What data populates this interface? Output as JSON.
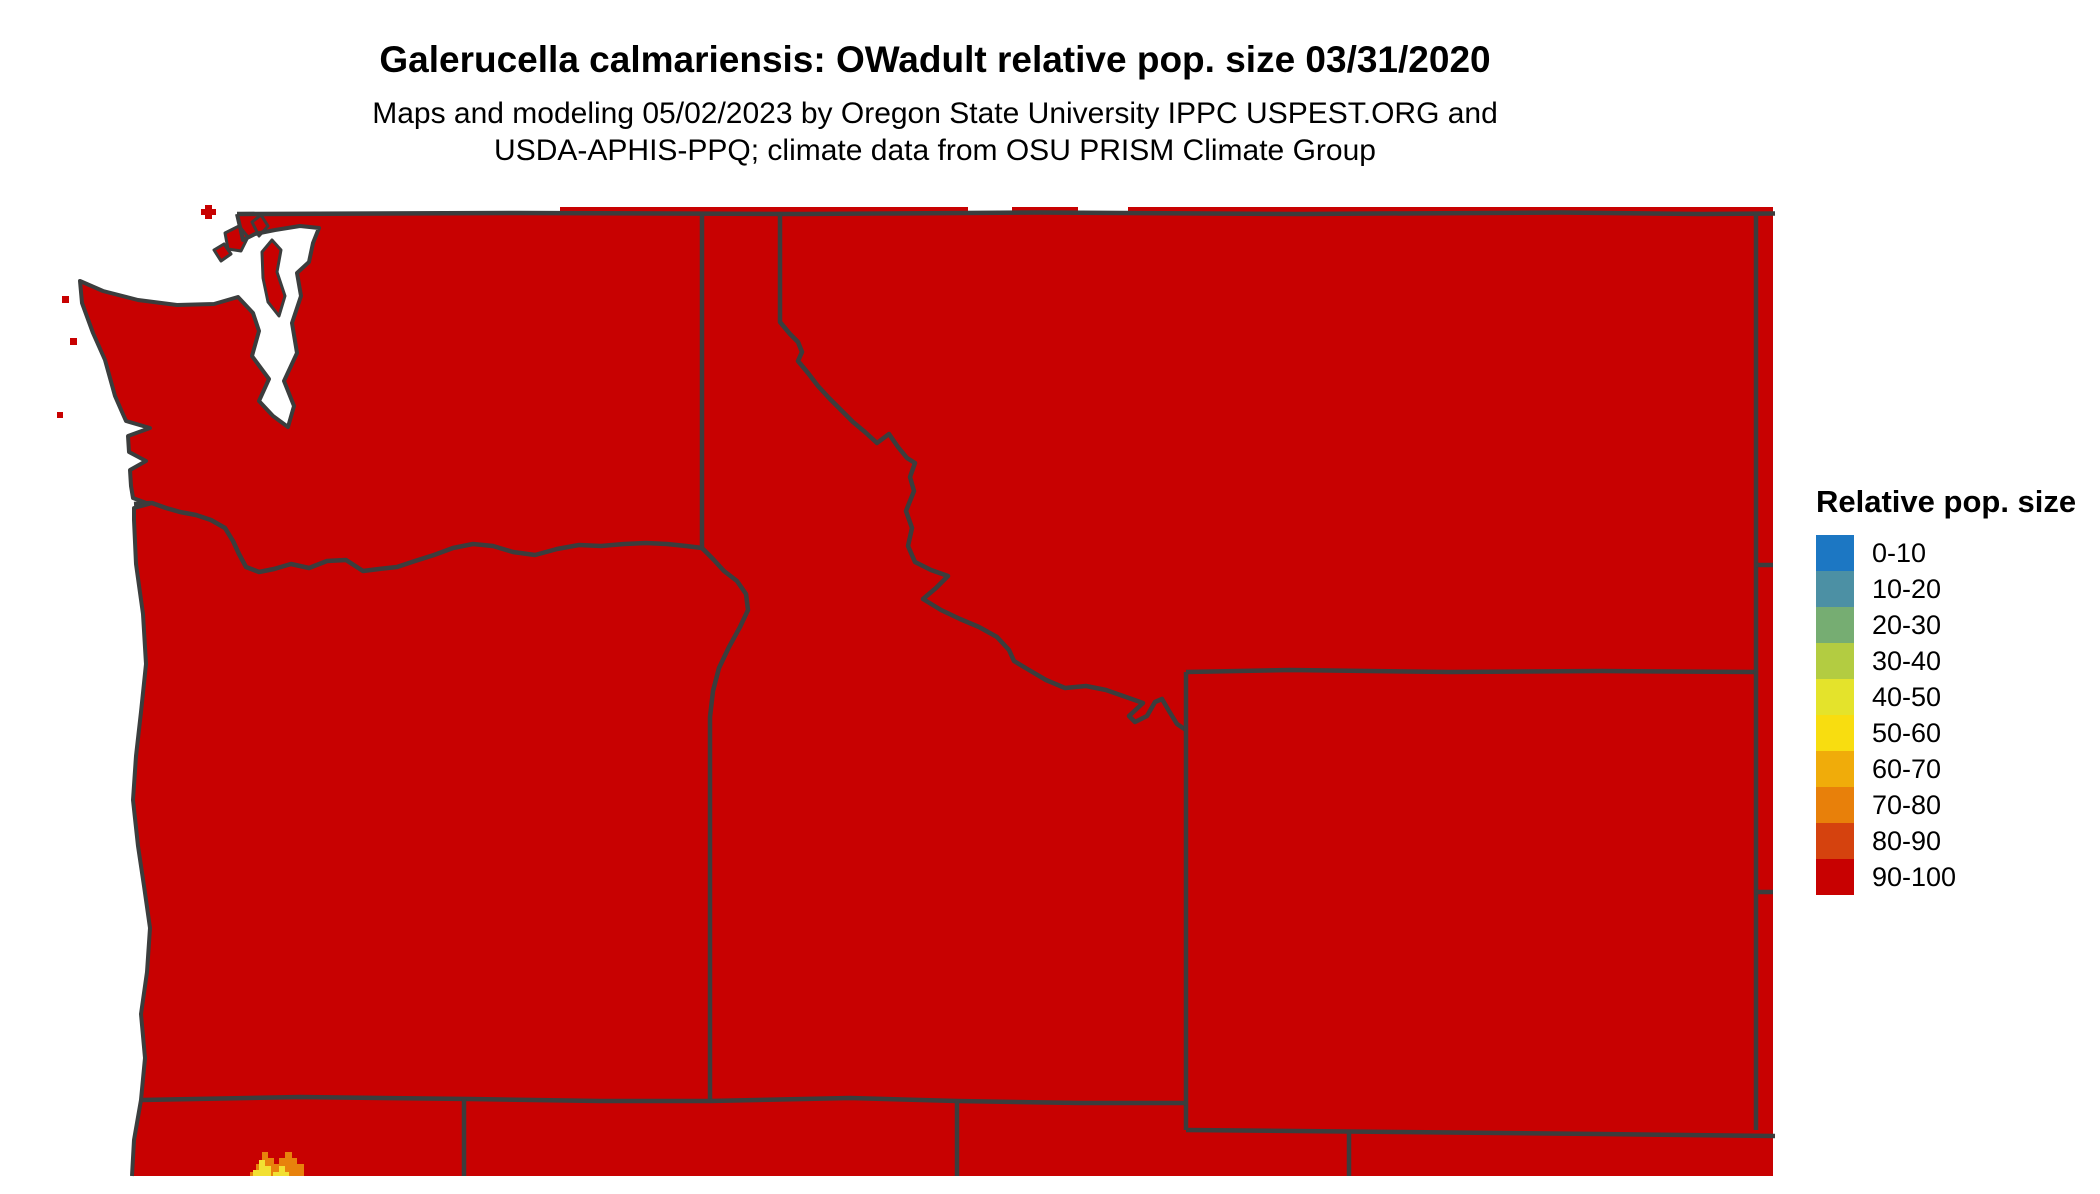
{
  "header": {
    "title": "Galerucella calmariensis: OWadult relative pop. size 03/31/2020",
    "subtitle_line1": "Maps and modeling 05/02/2023 by Oregon State University IPPC USPEST.ORG and",
    "subtitle_line2": "USDA-APHIS-PPQ; climate data from OSU PRISM Climate Group"
  },
  "legend": {
    "title": "Relative pop. size",
    "items": [
      {
        "label": "0-10",
        "color": "#1C77C3"
      },
      {
        "label": "10-20",
        "color": "#4C90A4"
      },
      {
        "label": "20-30",
        "color": "#76AD72"
      },
      {
        "label": "30-40",
        "color": "#B3CC41"
      },
      {
        "label": "40-50",
        "color": "#E4E32B"
      },
      {
        "label": "50-60",
        "color": "#F8DD10"
      },
      {
        "label": "60-70",
        "color": "#F0AC0A"
      },
      {
        "label": "70-80",
        "color": "#E8800A"
      },
      {
        "label": "80-90",
        "color": "#D5420E"
      },
      {
        "label": "90-100",
        "color": "#C80101"
      }
    ]
  },
  "map": {
    "colors": {
      "land_fill": "#C80101",
      "border": "#3B3D3D",
      "water": "#FFFFFF",
      "hotspot_orange": "#E8820C",
      "hotspot_yellow": "#F2E032"
    }
  }
}
